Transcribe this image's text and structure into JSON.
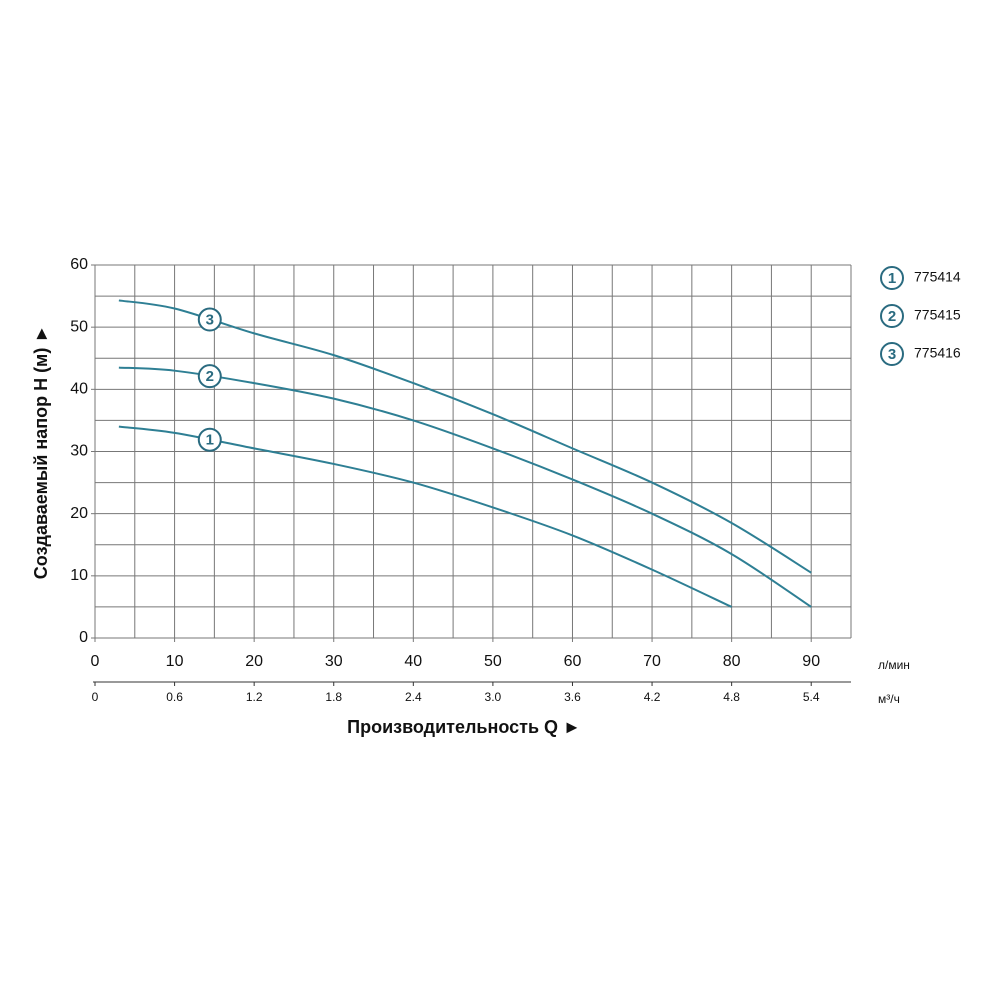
{
  "chart_data": {
    "type": "line",
    "x_title": "Производительность Q ►",
    "y_title": "Создаваемый напор H (м) ►",
    "x_unit": "л/мин",
    "x2_unit": "м³/ч",
    "xlim": [
      0,
      95
    ],
    "ylim": [
      0,
      60
    ],
    "xticks": [
      0,
      10,
      20,
      30,
      40,
      50,
      60,
      70,
      80,
      90
    ],
    "yticks": [
      0,
      10,
      20,
      30,
      40,
      50,
      60
    ],
    "x_grid_step": 5,
    "y_grid_step": 5,
    "x2lim": [
      0,
      5.7
    ],
    "x2ticks": [
      0,
      0.6,
      1.2,
      1.8,
      2.4,
      {
        "value": 3,
        "label": "3.0"
      },
      3.6,
      4.2,
      4.8,
      5.4
    ],
    "grid": true,
    "color": "#2e7f94",
    "series": [
      {
        "name": "775414",
        "label": "1",
        "x": [
          3,
          10,
          20,
          30,
          40,
          50,
          60,
          70,
          80
        ],
        "values": [
          34,
          33,
          30.5,
          28,
          25,
          21,
          16.5,
          11,
          5
        ]
      },
      {
        "name": "775415",
        "label": "2",
        "x": [
          3,
          10,
          20,
          30,
          40,
          50,
          60,
          70,
          80,
          90
        ],
        "values": [
          43.5,
          43,
          41,
          38.5,
          35,
          30.5,
          25.5,
          20,
          13.5,
          5
        ]
      },
      {
        "name": "775416",
        "label": "3",
        "x": [
          3,
          10,
          20,
          30,
          40,
          50,
          60,
          70,
          80,
          90
        ],
        "values": [
          54.3,
          53,
          49,
          45.5,
          41,
          36,
          30.5,
          25,
          18.5,
          10.5
        ]
      }
    ]
  }
}
